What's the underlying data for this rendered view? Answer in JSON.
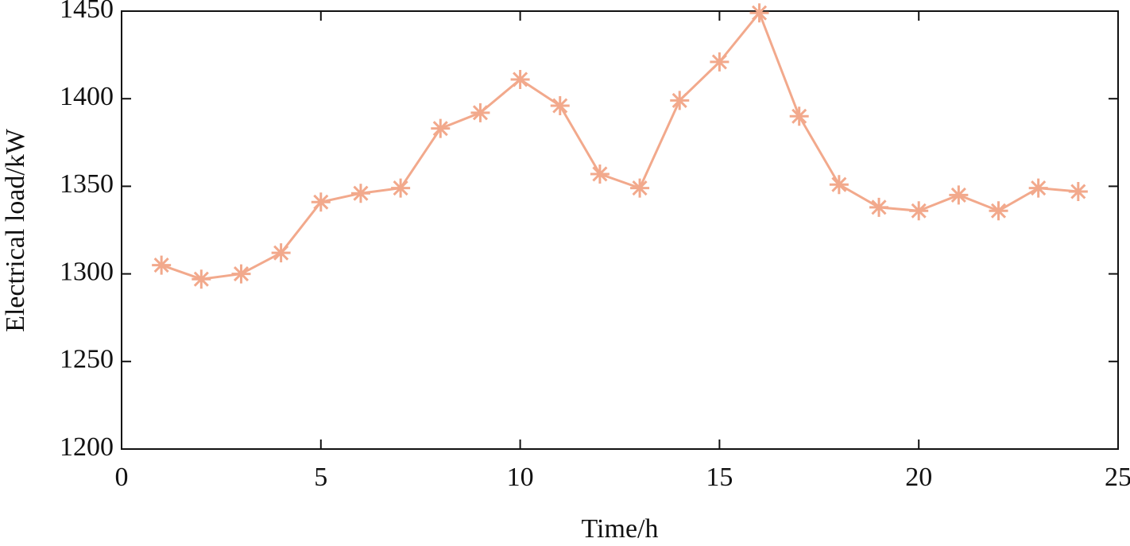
{
  "chart_data": {
    "type": "line",
    "x_label": "Time/h",
    "y_label": "Electrical load/kW",
    "x": [
      1,
      2,
      3,
      4,
      5,
      6,
      7,
      8,
      9,
      10,
      11,
      12,
      13,
      14,
      15,
      16,
      17,
      18,
      19,
      20,
      21,
      22,
      23,
      24
    ],
    "values": [
      1305,
      1297,
      1300,
      1312,
      1341,
      1346,
      1349,
      1383,
      1392,
      1411,
      1396,
      1357,
      1349,
      1399,
      1421,
      1449,
      1390,
      1351,
      1338,
      1336,
      1345,
      1336,
      1349,
      1347
    ],
    "color": "#f2a98c",
    "xlim": [
      0,
      25
    ],
    "xticks": [
      0,
      5,
      10,
      15,
      20,
      25
    ],
    "ylim": [
      1200,
      1450
    ],
    "yticks": [
      1200,
      1250,
      1300,
      1350,
      1400,
      1450
    ],
    "grid": false
  }
}
